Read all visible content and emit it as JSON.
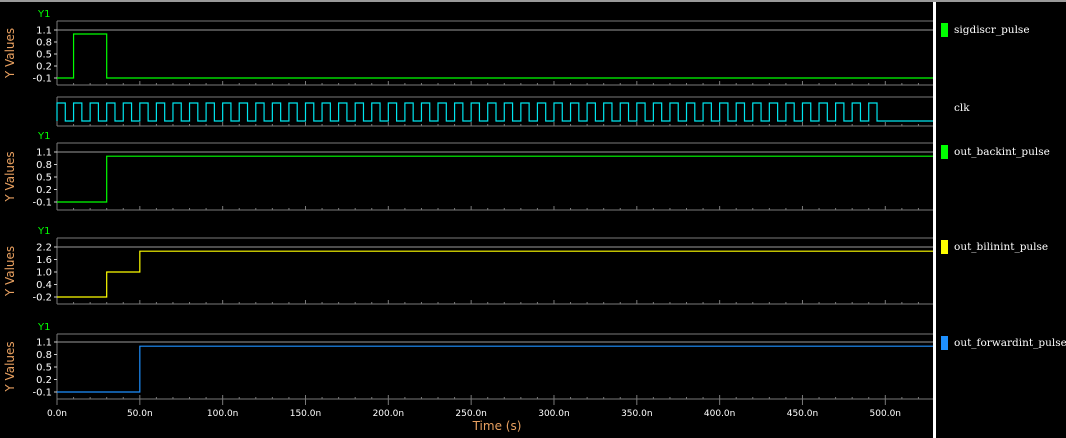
{
  "panels": [
    {
      "id": "p1",
      "title": "Y1",
      "ylabel": "Y Values",
      "yticks": [
        "1.1",
        "0.8",
        "0.5",
        "0.2",
        "-0.1"
      ],
      "signal": "sigdiscr_pulse",
      "color": "#00ff00"
    },
    {
      "id": "clk",
      "title": "",
      "ylabel": "",
      "yticks": [],
      "signal": "clk",
      "color": "#00e5ee"
    },
    {
      "id": "p2",
      "title": "Y1",
      "ylabel": "Y Values",
      "yticks": [
        "1.1",
        "0.8",
        "0.5",
        "0.2",
        "-0.1"
      ],
      "signal": "out_backint_pulse",
      "color": "#00ff00"
    },
    {
      "id": "p3",
      "title": "Y1",
      "ylabel": "Y Values",
      "yticks": [
        "2.2",
        "1.6",
        "1.0",
        "0.4",
        "-0.2"
      ],
      "signal": "out_bilinint_pulse",
      "color": "#ffff00"
    },
    {
      "id": "p4",
      "title": "Y1",
      "ylabel": "Y Values",
      "yticks": [
        "1.1",
        "0.8",
        "0.5",
        "0.2",
        "-0.1"
      ],
      "signal": "out_forwardint_pulse",
      "color": "#1e90ff"
    }
  ],
  "xaxis": {
    "label": "Time (s)",
    "ticks": [
      "0.0n",
      "50.0n",
      "100.0n",
      "150.0n",
      "200.0n",
      "250.0n",
      "300.0n",
      "350.0n",
      "400.0n",
      "450.0n",
      "500.0n"
    ]
  },
  "chart_data": {
    "type": "line",
    "x_unit": "ns",
    "xlim": [
      0,
      530
    ],
    "series": [
      {
        "name": "sigdiscr_pulse",
        "panel": "p1",
        "ylim": [
          -0.1,
          1.1
        ],
        "x": [
          0,
          10,
          10,
          30,
          30,
          530
        ],
        "y": [
          -0.1,
          -0.1,
          1.0,
          1.0,
          -0.1,
          -0.1
        ]
      },
      {
        "name": "clk",
        "panel": "clk",
        "ylim": [
          0,
          1
        ],
        "period": 10,
        "start": 0,
        "end": 500,
        "low_after_end": true
      },
      {
        "name": "out_backint_pulse",
        "panel": "p2",
        "ylim": [
          -0.1,
          1.1
        ],
        "x": [
          0,
          30,
          30,
          530
        ],
        "y": [
          -0.1,
          -0.1,
          1.0,
          1.0
        ]
      },
      {
        "name": "out_bilinint_pulse",
        "panel": "p3",
        "ylim": [
          -0.2,
          2.2
        ],
        "x": [
          0,
          30,
          30,
          50,
          50,
          530
        ],
        "y": [
          -0.2,
          -0.2,
          1.0,
          1.0,
          2.0,
          2.0
        ]
      },
      {
        "name": "out_forwardint_pulse",
        "panel": "p4",
        "ylim": [
          -0.1,
          1.1
        ],
        "x": [
          0,
          50,
          50,
          530
        ],
        "y": [
          -0.1,
          -0.1,
          1.0,
          1.0
        ]
      }
    ]
  }
}
